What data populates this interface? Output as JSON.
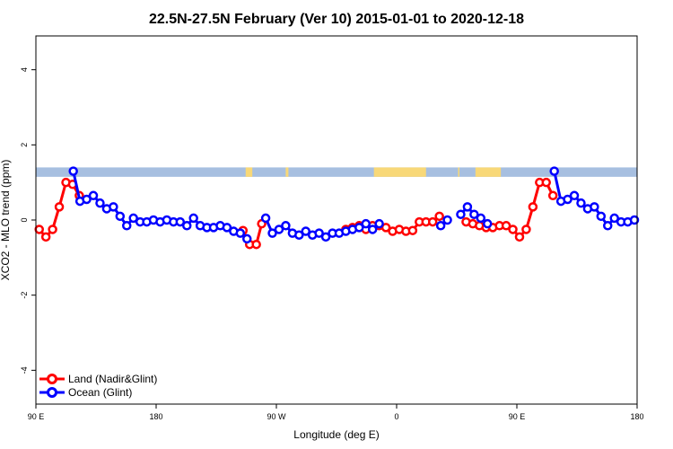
{
  "chart_data": {
    "type": "line",
    "title": "22.5N-27.5N February (Ver 10)   2015-01-01 to 2020-12-18",
    "xlabel": "Longitude (deg E)",
    "ylabel": "XCO2 - MLO trend (ppm)",
    "xlim": [
      90,
      540
    ],
    "ylim": [
      -4.9,
      4.9
    ],
    "xticks": [
      {
        "value": 90,
        "label": "90 E"
      },
      {
        "value": 180,
        "label": "180"
      },
      {
        "value": 270,
        "label": "90 W"
      },
      {
        "value": 360,
        "label": "0"
      },
      {
        "value": 450,
        "label": "90 E"
      },
      {
        "value": 540,
        "label": "180"
      }
    ],
    "yticks": [
      {
        "value": -4,
        "label": "-4"
      },
      {
        "value": -2,
        "label": "-2"
      },
      {
        "value": 0,
        "label": "0"
      },
      {
        "value": 2,
        "label": "2"
      },
      {
        "value": 4,
        "label": "4"
      }
    ],
    "legend_position": "bottom-left",
    "map_strip": {
      "y_range": [
        1.15,
        1.4
      ],
      "ocean_color": "#a7bfe0",
      "land_color": "#f8d878",
      "land_segments": [
        [
          247,
          252
        ],
        [
          277,
          279
        ],
        [
          343,
          382
        ],
        [
          406,
          407
        ],
        [
          419,
          438
        ]
      ]
    },
    "series": [
      {
        "name": "Land (Nadir&Glint)",
        "color": "#ff0000",
        "points": [
          [
            92.5,
            -0.25
          ],
          [
            97.5,
            -0.45
          ],
          [
            102.5,
            -0.25
          ],
          [
            107.5,
            0.35
          ],
          [
            112.5,
            1.0
          ],
          [
            117.5,
            0.95
          ],
          [
            122.5,
            0.65
          ],
          [
            245,
            -0.28
          ],
          [
            250,
            -0.65
          ],
          [
            255,
            -0.65
          ],
          [
            259,
            -0.1
          ],
          [
            322,
            -0.25
          ],
          [
            327,
            -0.2
          ],
          [
            332,
            -0.15
          ],
          [
            337,
            -0.25
          ],
          [
            342,
            -0.15
          ],
          [
            347,
            -0.15
          ],
          [
            352,
            -0.2
          ],
          [
            357,
            -0.3
          ],
          [
            362,
            -0.25
          ],
          [
            367,
            -0.3
          ],
          [
            372,
            -0.28
          ],
          [
            377,
            -0.05
          ],
          [
            382,
            -0.05
          ],
          [
            387,
            -0.05
          ],
          [
            392,
            0.1
          ],
          [
            412,
            -0.05
          ],
          [
            417,
            -0.1
          ],
          [
            422,
            -0.15
          ],
          [
            427,
            -0.2
          ],
          [
            432,
            -0.2
          ],
          [
            437,
            -0.15
          ],
          [
            442,
            -0.15
          ],
          [
            447,
            -0.25
          ],
          [
            452,
            -0.45
          ],
          [
            457,
            -0.25
          ],
          [
            462,
            0.35
          ],
          [
            467,
            1.0
          ],
          [
            472,
            1.0
          ],
          [
            477,
            0.65
          ]
        ]
      },
      {
        "name": "Ocean (Glint)",
        "color": "#0000ff",
        "points": [
          [
            118,
            1.3
          ],
          [
            123,
            0.5
          ],
          [
            128,
            0.55
          ],
          [
            133,
            0.65
          ],
          [
            138,
            0.45
          ],
          [
            143,
            0.3
          ],
          [
            148,
            0.35
          ],
          [
            153,
            0.1
          ],
          [
            158,
            -0.15
          ],
          [
            163,
            0.05
          ],
          [
            168,
            -0.05
          ],
          [
            173,
            -0.05
          ],
          [
            178,
            0.0
          ],
          [
            183,
            -0.05
          ],
          [
            188,
            0.0
          ],
          [
            193,
            -0.05
          ],
          [
            198,
            -0.05
          ],
          [
            203,
            -0.15
          ],
          [
            208,
            0.05
          ],
          [
            213,
            -0.15
          ],
          [
            218,
            -0.2
          ],
          [
            223,
            -0.2
          ],
          [
            228,
            -0.15
          ],
          [
            233,
            -0.2
          ],
          [
            238,
            -0.3
          ],
          [
            243,
            -0.35
          ],
          [
            248,
            -0.5
          ],
          [
            262,
            0.05
          ],
          [
            267,
            -0.35
          ],
          [
            272,
            -0.25
          ],
          [
            277,
            -0.15
          ],
          [
            282,
            -0.35
          ],
          [
            287,
            -0.4
          ],
          [
            292,
            -0.3
          ],
          [
            297,
            -0.4
          ],
          [
            302,
            -0.35
          ],
          [
            307,
            -0.45
          ],
          [
            312,
            -0.35
          ],
          [
            317,
            -0.35
          ],
          [
            322,
            -0.3
          ],
          [
            327,
            -0.25
          ],
          [
            332,
            -0.2
          ],
          [
            337,
            -0.1
          ],
          [
            342,
            -0.25
          ],
          [
            347,
            -0.1
          ],
          [
            393,
            -0.15
          ],
          [
            398,
            0.0
          ],
          [
            408,
            0.15
          ],
          [
            413,
            0.35
          ],
          [
            418,
            0.15
          ],
          [
            423,
            0.05
          ],
          [
            428,
            -0.1
          ],
          [
            478,
            1.3
          ],
          [
            483,
            0.5
          ],
          [
            488,
            0.55
          ],
          [
            493,
            0.65
          ],
          [
            498,
            0.45
          ],
          [
            503,
            0.3
          ],
          [
            508,
            0.35
          ],
          [
            513,
            0.1
          ],
          [
            518,
            -0.15
          ],
          [
            523,
            0.05
          ],
          [
            528,
            -0.05
          ],
          [
            533,
            -0.05
          ],
          [
            538,
            0.0
          ]
        ]
      }
    ]
  }
}
